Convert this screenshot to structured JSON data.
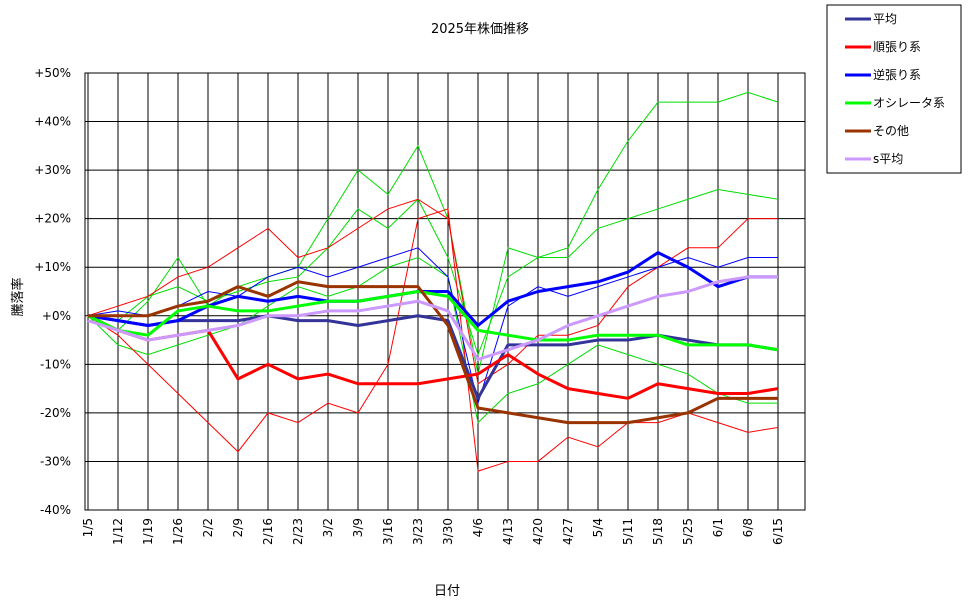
{
  "chart_data": {
    "type": "line",
    "title": "2025年株価推移",
    "xlabel": "日付",
    "ylabel": "騰落率",
    "ylim": [
      -40,
      50
    ],
    "yticks": [
      -40,
      -30,
      -20,
      -10,
      0,
      10,
      20,
      30,
      40,
      50
    ],
    "ytick_labels": [
      "-40%",
      "-30%",
      "-20%",
      "-10%",
      "+0%",
      "+10%",
      "+20%",
      "+30%",
      "+40%",
      "+50%"
    ],
    "x_categories": [
      "1/5",
      "1/12",
      "1/19",
      "1/26",
      "2/2",
      "2/9",
      "2/16",
      "2/23",
      "3/2",
      "3/9",
      "3/16",
      "3/23",
      "3/30",
      "4/6",
      "4/13",
      "4/20",
      "4/27",
      "5/4",
      "5/11",
      "5/18",
      "5/25",
      "6/1",
      "6/8",
      "6/15"
    ],
    "grid": true,
    "legend_position": "top-right (outside plot)",
    "series": [
      {
        "name": "平均",
        "color": "#333399",
        "values": [
          0,
          -1,
          -2,
          -1,
          -1,
          -1,
          0,
          -1,
          -1,
          -2,
          -1,
          0,
          -1,
          -17,
          -6,
          -6,
          -6,
          -5,
          -5,
          -4,
          -5,
          -6,
          -6,
          -7
        ]
      },
      {
        "name": "順張り系",
        "color": "#ff0000",
        "values": [
          0,
          -3,
          -5,
          -4,
          -3,
          -13,
          -10,
          -13,
          -12,
          -14,
          -14,
          -14,
          -13,
          -12,
          -8,
          -12,
          -15,
          -16,
          -17,
          -14,
          -15,
          -16,
          -16,
          -15
        ]
      },
      {
        "name": "逆張り系",
        "color": "#0000ff",
        "values": [
          0,
          -1,
          -2,
          -1,
          2,
          4,
          3,
          4,
          3,
          3,
          4,
          5,
          5,
          -2,
          3,
          5,
          6,
          7,
          9,
          13,
          10,
          6,
          8,
          8
        ]
      },
      {
        "name": "オシレータ系",
        "color": "#00ff00",
        "values": [
          0,
          -3,
          -4,
          1,
          2,
          1,
          1,
          2,
          3,
          3,
          4,
          5,
          4,
          -3,
          -4,
          -5,
          -5,
          -4,
          -4,
          -4,
          -6,
          -6,
          -6,
          -7
        ]
      },
      {
        "name": "その他",
        "color": "#993300",
        "values": [
          0,
          0,
          0,
          2,
          3,
          6,
          4,
          7,
          6,
          6,
          6,
          6,
          -2,
          -19,
          -20,
          -21,
          -22,
          -22,
          -22,
          -21,
          -20,
          -17,
          -17,
          -17
        ]
      },
      {
        "name": "s平均",
        "color": "#cc99ff",
        "values": [
          -1,
          -3,
          -5,
          -4,
          -3,
          -2,
          0,
          0,
          1,
          1,
          2,
          3,
          1,
          -9,
          -7,
          -5,
          -2,
          0,
          2,
          4,
          5,
          7,
          8,
          8
        ]
      }
    ],
    "background_lines": [
      {
        "color": "#00dd00",
        "values": [
          0,
          -3,
          3,
          12,
          2,
          6,
          8,
          10,
          20,
          30,
          25,
          35,
          20,
          -12,
          14,
          12,
          14,
          26,
          36,
          44,
          44,
          44,
          46,
          44
        ]
      },
      {
        "color": "#00dd00",
        "values": [
          0,
          -1,
          4,
          6,
          3,
          5,
          7,
          8,
          14,
          22,
          18,
          24,
          12,
          -8,
          8,
          12,
          12,
          18,
          20,
          22,
          24,
          26,
          25,
          24
        ]
      },
      {
        "color": "#00dd00",
        "values": [
          0,
          -6,
          -8,
          -6,
          -4,
          -2,
          2,
          6,
          4,
          6,
          10,
          12,
          8,
          -22,
          -16,
          -14,
          -10,
          -6,
          -8,
          -10,
          -12,
          -16,
          -18,
          -18
        ]
      },
      {
        "color": "#ff0000",
        "values": [
          0,
          -4,
          -10,
          -16,
          -22,
          -28,
          -20,
          -22,
          -18,
          -20,
          -10,
          20,
          22,
          -32,
          -30,
          -30,
          -25,
          -27,
          -22,
          -22,
          -20,
          -22,
          -24,
          -23
        ]
      },
      {
        "color": "#ff0000",
        "values": [
          0,
          2,
          4,
          8,
          10,
          14,
          18,
          12,
          14,
          18,
          22,
          24,
          20,
          -14,
          -10,
          -4,
          -4,
          -2,
          6,
          10,
          14,
          14,
          20,
          20
        ]
      },
      {
        "color": "#0000ff",
        "values": [
          0,
          1,
          0,
          2,
          5,
          4,
          8,
          10,
          8,
          10,
          12,
          14,
          8,
          -18,
          2,
          6,
          4,
          6,
          8,
          10,
          12,
          10,
          12,
          12
        ]
      }
    ]
  }
}
